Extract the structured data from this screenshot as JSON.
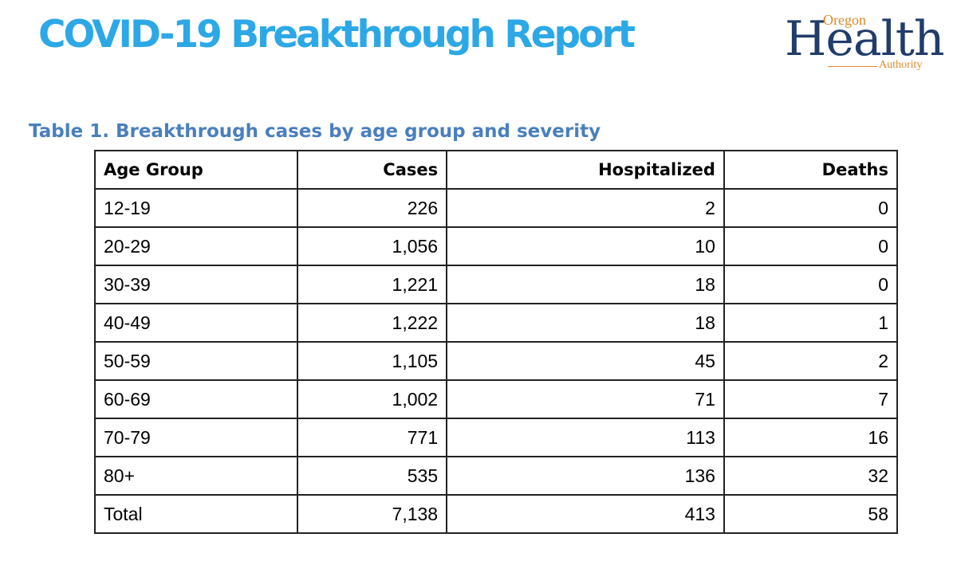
{
  "header": {
    "title": "COVID-19 Breakthrough Report",
    "logo": {
      "top_word": "Oregon",
      "main_word": "Health",
      "bottom_word": "Authority",
      "colors": {
        "main": "#213c6b",
        "accent": "#e08a2a"
      }
    }
  },
  "title_color": "#2da8e6",
  "caption_color": "#4a7fbd",
  "table": {
    "caption": "Table 1. Breakthrough cases by age group and severity",
    "headers": {
      "age_group": "Age Group",
      "cases": "Cases",
      "hospitalized": "Hospitalized",
      "deaths": "Deaths"
    },
    "rows": [
      {
        "age_group": "12-19",
        "cases": "226",
        "hospitalized": "2",
        "deaths": "0"
      },
      {
        "age_group": "20-29",
        "cases": "1,056",
        "hospitalized": "10",
        "deaths": "0"
      },
      {
        "age_group": "30-39",
        "cases": "1,221",
        "hospitalized": "18",
        "deaths": "0"
      },
      {
        "age_group": "40-49",
        "cases": "1,222",
        "hospitalized": "18",
        "deaths": "1"
      },
      {
        "age_group": "50-59",
        "cases": "1,105",
        "hospitalized": "45",
        "deaths": "2"
      },
      {
        "age_group": "60-69",
        "cases": "1,002",
        "hospitalized": "71",
        "deaths": "7"
      },
      {
        "age_group": "70-79",
        "cases": "771",
        "hospitalized": "113",
        "deaths": "16"
      },
      {
        "age_group": "80+",
        "cases": "535",
        "hospitalized": "136",
        "deaths": "32"
      },
      {
        "age_group": "Total",
        "cases": "7,138",
        "hospitalized": "413",
        "deaths": "58"
      }
    ]
  }
}
